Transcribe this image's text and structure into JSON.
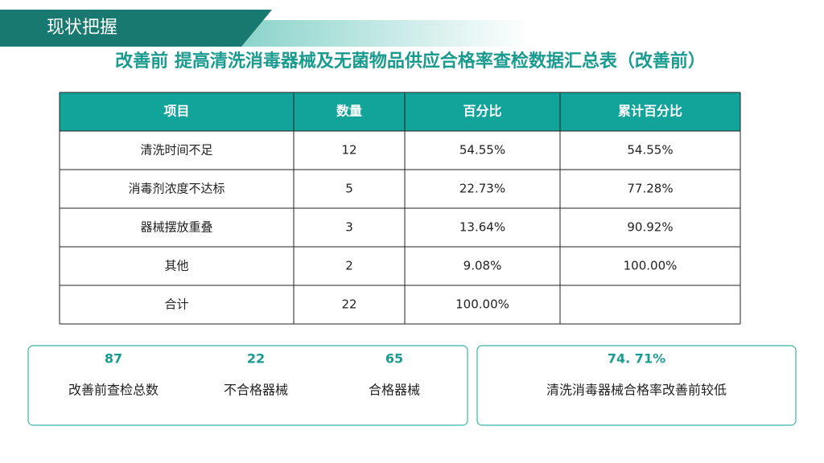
{
  "header": {
    "title": "现状把握"
  },
  "title": "改善前 提高清洗消毒器械及无菌物品供应合格率查检数据汇总表（改善前）",
  "table": {
    "columns": [
      "项目",
      "数量",
      "百分比",
      "累计百分比"
    ],
    "rows": [
      [
        "清洗时间不足",
        "12",
        "54.55%",
        "54.55%"
      ],
      [
        "消毒剂浓度不达标",
        "5",
        "22.73%",
        "77.28%"
      ],
      [
        "器械摆放重叠",
        "3",
        "13.64%",
        "90.92%"
      ],
      [
        "其他",
        "2",
        "9.08%",
        "100.00%"
      ],
      [
        "合计",
        "22",
        "100.00%"
      ]
    ]
  },
  "stats": [
    {
      "value": "87",
      "label": "改善前查检总数"
    },
    {
      "value": "22",
      "label": "不合格器械"
    },
    {
      "value": "65",
      "label": "合格器械"
    }
  ],
  "summary": {
    "value": "74. 71%",
    "label": "清洗消毒器械合格率改善前较低"
  }
}
